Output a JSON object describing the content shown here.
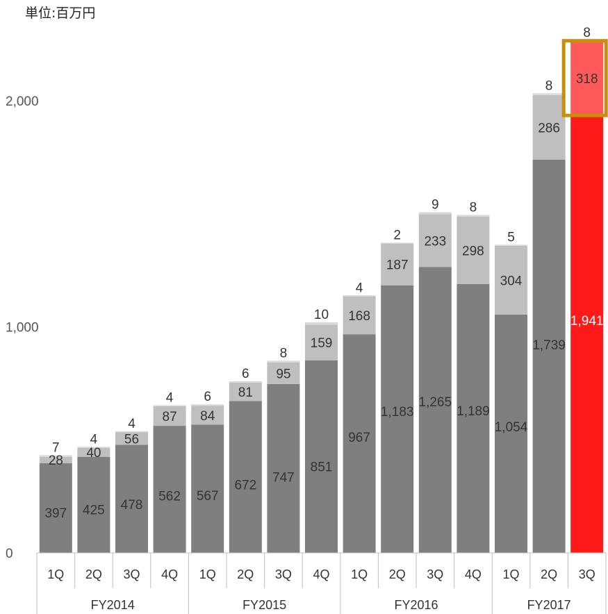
{
  "unit_label": "単位:百万円",
  "colors": {
    "base": "#7f7f7f",
    "mid": "#bfbfbf",
    "top": "#d9d9d9",
    "highlight_base": "#ff1a1a",
    "highlight_mid": "#ff5a5a",
    "highlight_top": "#ff8080",
    "highlight_box": "#c8900a"
  },
  "chart_data": {
    "type": "bar",
    "stacked": true,
    "groups": [
      {
        "label": "FY2014",
        "quarters": [
          "1Q",
          "2Q",
          "3Q",
          "4Q"
        ]
      },
      {
        "label": "FY2015",
        "quarters": [
          "1Q",
          "2Q",
          "3Q",
          "4Q"
        ]
      },
      {
        "label": "FY2016",
        "quarters": [
          "1Q",
          "2Q",
          "3Q",
          "4Q"
        ]
      },
      {
        "label": "FY2017",
        "quarters": [
          "1Q",
          "2Q",
          "3Q"
        ]
      }
    ],
    "categories": [
      "1Q",
      "2Q",
      "3Q",
      "4Q",
      "1Q",
      "2Q",
      "3Q",
      "4Q",
      "1Q",
      "2Q",
      "3Q",
      "4Q",
      "1Q",
      "2Q",
      "3Q"
    ],
    "series": [
      {
        "values": [
          397,
          425,
          478,
          562,
          567,
          672,
          747,
          851,
          967,
          1183,
          1265,
          1189,
          1054,
          1739,
          1941
        ],
        "labels": [
          "397",
          "425",
          "478",
          "562",
          "567",
          "672",
          "747",
          "851",
          "967",
          "1,183",
          "1,265",
          "1,189",
          "1,054",
          "1,739",
          "1,941"
        ]
      },
      {
        "values": [
          28,
          40,
          56,
          87,
          84,
          81,
          95,
          159,
          168,
          187,
          233,
          298,
          304,
          286,
          318
        ],
        "labels": [
          "28",
          "40",
          "56",
          "87",
          "84",
          "81",
          "95",
          "159",
          "168",
          "187",
          "233",
          "298",
          "304",
          "286",
          "318"
        ]
      },
      {
        "values": [
          7,
          4,
          4,
          4,
          6,
          6,
          8,
          10,
          4,
          2,
          9,
          8,
          5,
          8,
          8
        ],
        "labels": [
          "7",
          "4",
          "4",
          "4",
          "6",
          "6",
          "8",
          "10",
          "4",
          "2",
          "9",
          "8",
          "5",
          "8",
          "8"
        ]
      }
    ],
    "highlight_index": 14,
    "ylim": [
      0,
      2300
    ],
    "yticks": [
      {
        "value": 0,
        "label": "0"
      },
      {
        "value": 1000,
        "label": "1,000"
      },
      {
        "value": 2000,
        "label": "2,000"
      }
    ]
  }
}
